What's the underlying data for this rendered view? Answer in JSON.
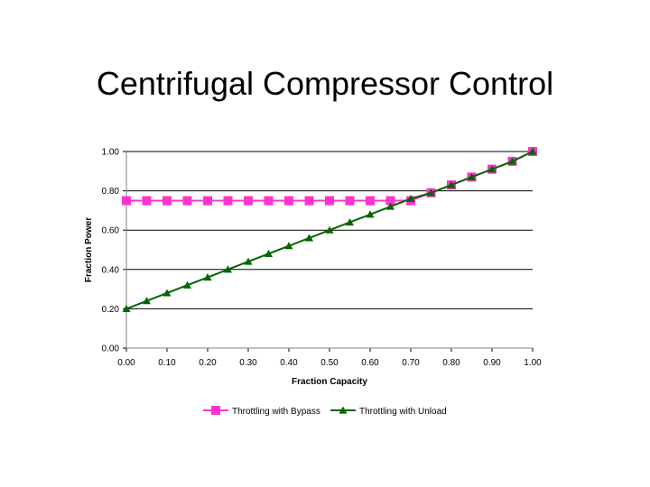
{
  "slide": {
    "title": "Centrifugal Compressor Control"
  },
  "chart_data": {
    "type": "line",
    "xlabel": "Fraction Capacity",
    "ylabel": "Fraction Power",
    "xlim": [
      0,
      1
    ],
    "ylim": [
      0,
      1
    ],
    "x_ticks": [
      "0.00",
      "0.10",
      "0.20",
      "0.30",
      "0.40",
      "0.50",
      "0.60",
      "0.70",
      "0.80",
      "0.90",
      "1.00"
    ],
    "y_ticks": [
      "0.00",
      "0.20",
      "0.40",
      "0.60",
      "0.80",
      "1.00"
    ],
    "grid": "horizontal major",
    "legend_position": "bottom",
    "x": [
      0.0,
      0.05,
      0.1,
      0.15,
      0.2,
      0.25,
      0.3,
      0.35,
      0.4,
      0.45,
      0.5,
      0.55,
      0.6,
      0.65,
      0.7,
      0.75,
      0.8,
      0.85,
      0.9,
      0.95,
      1.0
    ],
    "series": [
      {
        "name": "Throttling with Bypass",
        "color": "#ff33cc",
        "marker": "square",
        "values": [
          0.75,
          0.75,
          0.75,
          0.75,
          0.75,
          0.75,
          0.75,
          0.75,
          0.75,
          0.75,
          0.75,
          0.75,
          0.75,
          0.75,
          0.75,
          0.79,
          0.83,
          0.87,
          0.91,
          0.95,
          1.0
        ]
      },
      {
        "name": "Throttling with Unload",
        "color": "#006600",
        "marker": "triangle",
        "values": [
          0.2,
          0.24,
          0.28,
          0.32,
          0.36,
          0.4,
          0.44,
          0.48,
          0.52,
          0.56,
          0.6,
          0.64,
          0.68,
          0.72,
          0.76,
          0.79,
          0.83,
          0.87,
          0.91,
          0.95,
          1.0
        ]
      }
    ]
  }
}
